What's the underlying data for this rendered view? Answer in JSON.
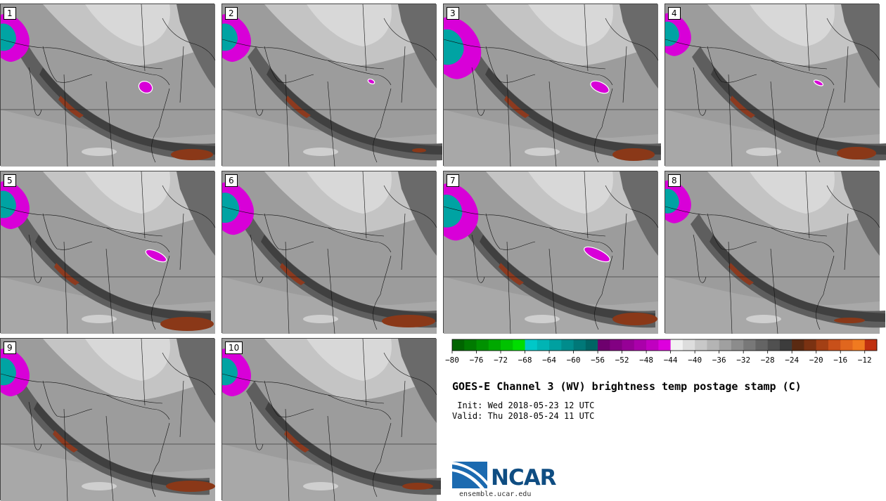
{
  "panels": [
    {
      "label": "1"
    },
    {
      "label": "2"
    },
    {
      "label": "3"
    },
    {
      "label": "4"
    },
    {
      "label": "5"
    },
    {
      "label": "6"
    },
    {
      "label": "7"
    },
    {
      "label": "8"
    },
    {
      "label": "9"
    },
    {
      "label": "10"
    }
  ],
  "chart_data": {
    "type": "heatmap",
    "title": "GOES-E Channel 3 (WV) brightness temp postage stamp (C)",
    "init": " Init: Wed 2018-05-23 12 UTC",
    "valid": "Valid: Thu 2018-05-24 11 UTC",
    "colorbar": {
      "ticks": [
        -80,
        -76,
        -72,
        -68,
        -64,
        -60,
        -56,
        -52,
        -48,
        -44,
        -40,
        -36,
        -32,
        -28,
        -24,
        -20,
        -16,
        -12
      ],
      "range": [
        -80,
        -10
      ],
      "bins": [
        {
          "from": -80,
          "to": -68,
          "colors": [
            "#006400",
            "#007a00",
            "#009100",
            "#00a800",
            "#00c200",
            "#00dd00"
          ]
        },
        {
          "from": -68,
          "to": -56,
          "colors": [
            "#00c8c8",
            "#00b4b4",
            "#00a0a0",
            "#008c8c",
            "#007878",
            "#006464"
          ]
        },
        {
          "from": -56,
          "to": -44,
          "colors": [
            "#6e006e",
            "#820082",
            "#960096",
            "#aa00aa",
            "#c000c0",
            "#dd00dd"
          ]
        },
        {
          "from": -44,
          "to": -24,
          "colors": [
            "#f2f2f2",
            "#dddddd",
            "#c8c8c8",
            "#b4b4b4",
            "#a0a0a0",
            "#8c8c8c",
            "#787878",
            "#646464",
            "#505050",
            "#3c3c3c"
          ]
        },
        {
          "from": -24,
          "to": -10,
          "colors": [
            "#5a2a12",
            "#7a3212",
            "#a34015",
            "#c8501a",
            "#e0661e",
            "#f07a20",
            "#c03010"
          ]
        }
      ]
    }
  },
  "logo": {
    "name": "NCAR",
    "url": "ensemble.ucar.edu"
  },
  "colors": {
    "wv_dry": "#8c3a1f",
    "wv_moist": "#d800d8",
    "cold_cloud": "#00a3a3"
  }
}
